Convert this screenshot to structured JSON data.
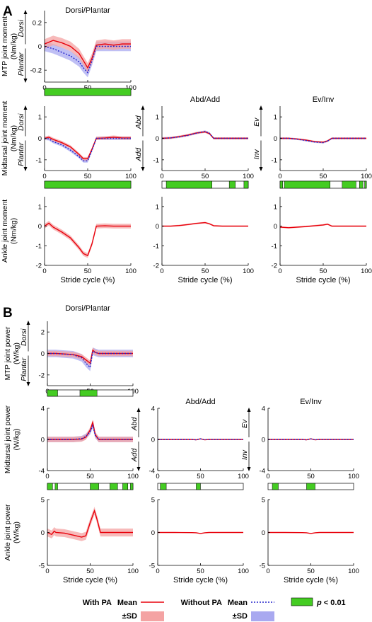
{
  "panel_letters": [
    "A",
    "B"
  ],
  "column_titles": [
    "Dorsi/Plantar",
    "Abd/Add",
    "Ev/Inv"
  ],
  "xlabel": "Stride cycle (%)",
  "direction_labels": {
    "dorsi_plantar": [
      "Dorsi",
      "Plantar"
    ],
    "abd_add": [
      "Abd",
      "Add"
    ],
    "ev_inv": [
      "Ev",
      "Inv"
    ]
  },
  "legend": {
    "with_pa": "With PA",
    "without_pa": "Without PA",
    "mean": "Mean",
    "sd": "±SD",
    "p_prefix": "p",
    "p_suffix": " < 0.01"
  },
  "colors": {
    "with_pa": "#e8000b",
    "with_pa_sd": "#f4a3a3",
    "without_pa": "#2222cc",
    "without_pa_sd": "#a9a9f0",
    "significant": "#44cc22"
  },
  "chart_data": [
    {
      "id": "A-mtp",
      "type": "line",
      "ylabel": [
        "MTP joint moment",
        "(Nm/kg)"
      ],
      "direction": "dorsi_plantar",
      "x": [
        0,
        10,
        20,
        30,
        40,
        45,
        50,
        55,
        60,
        70,
        80,
        90,
        100
      ],
      "series": [
        {
          "name": "With PA",
          "values": [
            0.02,
            0.05,
            0.03,
            0.0,
            -0.06,
            -0.12,
            -0.18,
            -0.1,
            0.01,
            0.02,
            0.01,
            0.02,
            0.02
          ],
          "sd": 0.04
        },
        {
          "name": "Without PA",
          "values": [
            0.0,
            -0.02,
            -0.05,
            -0.08,
            -0.13,
            -0.18,
            -0.22,
            -0.12,
            0.0,
            0.0,
            0.0,
            0.0,
            0.0
          ],
          "sd": 0.04
        }
      ],
      "ylim": [
        -0.3,
        0.3
      ],
      "yticks": [
        -0.2,
        0,
        0.2
      ],
      "xticks": [
        0,
        50,
        100
      ],
      "significance": [
        [
          0,
          100
        ]
      ]
    },
    {
      "id": "A-mid-dp",
      "type": "line",
      "ylabel": [
        "Midtarsal joint moment",
        "(Nm/kg)"
      ],
      "direction": "dorsi_plantar",
      "x": [
        0,
        5,
        10,
        20,
        30,
        40,
        45,
        50,
        55,
        60,
        70,
        80,
        90,
        100
      ],
      "series": [
        {
          "name": "With PA",
          "values": [
            0.0,
            0.05,
            -0.05,
            -0.2,
            -0.4,
            -0.75,
            -0.95,
            -0.95,
            -0.5,
            0.0,
            0.02,
            0.05,
            0.02,
            0.02
          ],
          "sd": 0.08
        },
        {
          "name": "Without PA",
          "values": [
            0.0,
            -0.02,
            -0.15,
            -0.3,
            -0.55,
            -0.85,
            -1.05,
            -1.05,
            -0.55,
            0.0,
            0.0,
            0.0,
            0.0,
            0.0
          ],
          "sd": 0.08
        }
      ],
      "ylim": [
        -1.5,
        1.5
      ],
      "yticks": [
        -1,
        0,
        1
      ],
      "xticks": [
        0,
        50,
        100
      ],
      "significance": [
        [
          0,
          100
        ]
      ]
    },
    {
      "id": "A-mid-aa",
      "type": "line",
      "title": "Abd/Add",
      "direction": "abd_add",
      "x": [
        0,
        10,
        20,
        30,
        40,
        50,
        55,
        60,
        70,
        80,
        90,
        100
      ],
      "series": [
        {
          "name": "With PA",
          "values": [
            0.0,
            0.02,
            0.08,
            0.15,
            0.25,
            0.3,
            0.22,
            0.0,
            0.0,
            0.0,
            0.0,
            0.0
          ],
          "sd": 0.05
        },
        {
          "name": "Without PA",
          "values": [
            0.0,
            0.02,
            0.07,
            0.14,
            0.24,
            0.32,
            0.24,
            0.0,
            0.0,
            0.0,
            0.0,
            0.0
          ],
          "sd": 0.05
        }
      ],
      "ylim": [
        -1.5,
        1.5
      ],
      "yticks": [
        -1,
        0,
        1
      ],
      "xticks": [
        0,
        50,
        100
      ],
      "significance": [
        [
          5,
          58
        ],
        [
          78,
          85
        ],
        [
          95,
          100
        ]
      ]
    },
    {
      "id": "A-mid-ei",
      "type": "line",
      "title": "Ev/Inv",
      "direction": "ev_inv",
      "x": [
        0,
        10,
        20,
        30,
        40,
        50,
        55,
        60,
        70,
        80,
        90,
        100
      ],
      "series": [
        {
          "name": "With PA",
          "values": [
            0.0,
            0.0,
            -0.03,
            -0.08,
            -0.15,
            -0.18,
            -0.12,
            0.0,
            0.0,
            0.0,
            0.0,
            0.0
          ],
          "sd": 0.04
        },
        {
          "name": "Without PA",
          "values": [
            0.0,
            0.0,
            -0.04,
            -0.1,
            -0.17,
            -0.2,
            -0.13,
            0.0,
            0.0,
            0.0,
            0.0,
            0.0
          ],
          "sd": 0.04
        }
      ],
      "ylim": [
        -1.5,
        1.5
      ],
      "yticks": [
        -1,
        0,
        1
      ],
      "xticks": [
        0,
        50,
        100
      ],
      "significance": [
        [
          0,
          3
        ],
        [
          5,
          58
        ],
        [
          72,
          88
        ],
        [
          92,
          96
        ],
        [
          98,
          100
        ]
      ]
    },
    {
      "id": "A-ankle",
      "type": "line",
      "ylabel": [
        "Ankle joint moment",
        "(Nm/kg)"
      ],
      "x": [
        0,
        5,
        10,
        20,
        30,
        40,
        45,
        50,
        55,
        60,
        70,
        80,
        90,
        100
      ],
      "series": [
        {
          "name": "With PA",
          "values": [
            0.0,
            0.15,
            -0.05,
            -0.3,
            -0.6,
            -1.1,
            -1.4,
            -1.5,
            -0.9,
            0.0,
            0.02,
            0.0,
            0.0,
            0.0
          ],
          "sd": 0.12
        }
      ],
      "ylim": [
        -2,
        1.5
      ],
      "yticks": [
        -2,
        -1,
        0,
        1
      ],
      "xticks": [
        0,
        50,
        100
      ],
      "xlabel": "Stride cycle (%)"
    },
    {
      "id": "A-ankle-aa",
      "type": "line",
      "x": [
        0,
        10,
        20,
        30,
        40,
        50,
        55,
        60,
        70,
        80,
        90,
        100
      ],
      "series": [
        {
          "name": "With PA",
          "values": [
            0.0,
            0.0,
            0.03,
            0.08,
            0.14,
            0.18,
            0.12,
            0.02,
            0.0,
            0.0,
            0.0,
            0.0
          ],
          "sd": 0.04
        }
      ],
      "ylim": [
        -2,
        1.5
      ],
      "yticks": [
        -2,
        -1,
        0,
        1
      ],
      "xticks": [
        0,
        50,
        100
      ],
      "xlabel": "Stride cycle (%)"
    },
    {
      "id": "A-ankle-ei",
      "type": "line",
      "x": [
        0,
        10,
        20,
        30,
        40,
        50,
        55,
        60,
        70,
        80,
        90,
        100
      ],
      "series": [
        {
          "name": "With PA",
          "values": [
            -0.05,
            -0.08,
            -0.05,
            -0.02,
            0.02,
            0.06,
            0.1,
            0.0,
            0.0,
            0.0,
            0.0,
            0.0
          ],
          "sd": 0.04
        }
      ],
      "ylim": [
        -2,
        1.5
      ],
      "yticks": [
        -2,
        -1,
        0,
        1
      ],
      "xticks": [
        0,
        50,
        100
      ],
      "xlabel": "Stride cycle (%)"
    },
    {
      "id": "B-mtp",
      "type": "line",
      "ylabel": [
        "MTP joint power",
        "(W/kg)"
      ],
      "direction": "dorsi_plantar",
      "x": [
        0,
        10,
        20,
        30,
        40,
        45,
        50,
        53,
        56,
        60,
        70,
        80,
        90,
        100
      ],
      "series": [
        {
          "name": "With PA",
          "values": [
            0.0,
            0.0,
            -0.05,
            -0.1,
            -0.3,
            -0.6,
            -0.9,
            0.3,
            0.1,
            0.0,
            0.0,
            0.0,
            0.0,
            0.0
          ],
          "sd": 0.25
        },
        {
          "name": "Without PA",
          "values": [
            0.0,
            0.0,
            -0.06,
            -0.12,
            -0.4,
            -0.9,
            -1.3,
            0.2,
            0.1,
            0.0,
            0.0,
            0.0,
            0.0,
            0.0
          ],
          "sd": 0.35
        }
      ],
      "ylim": [
        -3,
        3
      ],
      "yticks": [
        -2,
        0,
        2
      ],
      "xticks": [
        0,
        50,
        100
      ],
      "significance": [
        [
          0,
          12
        ],
        [
          38,
          58
        ]
      ]
    },
    {
      "id": "B-mid-dp",
      "type": "line",
      "ylabel": [
        "Midtarsal joint power",
        "(W/kg)"
      ],
      "x": [
        0,
        10,
        20,
        30,
        40,
        45,
        50,
        53,
        56,
        60,
        70,
        80,
        90,
        100
      ],
      "series": [
        {
          "name": "With PA",
          "values": [
            0.0,
            0.0,
            0.0,
            0.0,
            0.05,
            0.3,
            1.2,
            2.2,
            0.6,
            0.0,
            0.0,
            0.0,
            0.0,
            0.0
          ],
          "sd": 0.35
        },
        {
          "name": "Without PA",
          "values": [
            0.0,
            0.0,
            0.0,
            0.0,
            0.1,
            0.4,
            1.0,
            1.8,
            0.5,
            0.0,
            0.0,
            0.0,
            0.0,
            0.0
          ],
          "sd": 0.35
        }
      ],
      "ylim": [
        -4,
        4
      ],
      "yticks": [
        -4,
        0,
        4
      ],
      "xticks": [
        0,
        50,
        100
      ],
      "significance": [
        [
          0,
          6
        ],
        [
          9,
          12
        ],
        [
          50,
          60
        ],
        [
          73,
          82
        ],
        [
          88,
          94
        ],
        [
          97,
          100
        ]
      ]
    },
    {
      "id": "B-mid-aa",
      "type": "line",
      "title": "Abd/Add",
      "direction": "abd_add",
      "x": [
        0,
        20,
        40,
        45,
        50,
        55,
        60,
        80,
        100
      ],
      "series": [
        {
          "name": "With PA",
          "values": [
            0.0,
            0.0,
            0.0,
            -0.05,
            0.08,
            -0.05,
            0.0,
            0.0,
            0.0
          ],
          "sd": 0.05
        },
        {
          "name": "Without PA",
          "values": [
            0.0,
            0.0,
            0.0,
            -0.05,
            0.07,
            -0.04,
            0.0,
            0.0,
            0.0
          ],
          "sd": 0.05
        }
      ],
      "ylim": [
        -4,
        4
      ],
      "yticks": [
        -4,
        0,
        4
      ],
      "xticks": [
        0,
        50,
        100
      ],
      "significance": [
        [
          3,
          10
        ],
        [
          45,
          50
        ]
      ]
    },
    {
      "id": "B-mid-ei",
      "type": "line",
      "title": "Ev/Inv",
      "direction": "ev_inv",
      "x": [
        0,
        20,
        40,
        45,
        50,
        55,
        60,
        80,
        100
      ],
      "series": [
        {
          "name": "With PA",
          "values": [
            0.0,
            0.0,
            0.0,
            -0.05,
            0.08,
            -0.05,
            0.0,
            0.0,
            0.0
          ],
          "sd": 0.05
        },
        {
          "name": "Without PA",
          "values": [
            0.0,
            0.0,
            0.0,
            -0.05,
            0.07,
            -0.04,
            0.0,
            0.0,
            0.0
          ],
          "sd": 0.05
        }
      ],
      "ylim": [
        -4,
        4
      ],
      "yticks": [
        -4,
        0,
        4
      ],
      "xticks": [
        0,
        50,
        100
      ],
      "significance": [
        [
          5,
          12
        ],
        [
          45,
          55
        ]
      ]
    },
    {
      "id": "B-ankle",
      "type": "line",
      "ylabel": [
        "Ankle joint power",
        "(W/kg)"
      ],
      "x": [
        0,
        5,
        8,
        10,
        20,
        30,
        40,
        45,
        50,
        55,
        58,
        62,
        70,
        80,
        90,
        100
      ],
      "series": [
        {
          "name": "With PA",
          "values": [
            0.0,
            -0.3,
            0.2,
            0.0,
            -0.1,
            -0.4,
            -0.7,
            -0.5,
            1.5,
            3.3,
            2.0,
            0.0,
            0.0,
            0.0,
            0.0,
            0.0
          ],
          "sd": 0.6
        }
      ],
      "ylim": [
        -5,
        5
      ],
      "yticks": [
        -5,
        0,
        5
      ],
      "xticks": [
        0,
        50,
        100
      ],
      "xlabel": "Stride cycle (%)"
    },
    {
      "id": "B-ankle-aa",
      "type": "line",
      "x": [
        0,
        20,
        40,
        45,
        50,
        55,
        60,
        80,
        100
      ],
      "series": [
        {
          "name": "With PA",
          "values": [
            0.0,
            0.0,
            -0.02,
            -0.05,
            -0.15,
            -0.05,
            0.0,
            0.0,
            0.0
          ],
          "sd": 0.05
        }
      ],
      "ylim": [
        -5,
        5
      ],
      "yticks": [
        -5,
        0,
        5
      ],
      "xticks": [
        0,
        50,
        100
      ],
      "xlabel": "Stride cycle (%)"
    },
    {
      "id": "B-ankle-ei",
      "type": "line",
      "x": [
        0,
        20,
        40,
        45,
        50,
        55,
        60,
        80,
        100
      ],
      "series": [
        {
          "name": "With PA",
          "values": [
            0.0,
            0.0,
            -0.02,
            -0.05,
            -0.15,
            -0.05,
            0.0,
            0.0,
            0.0
          ],
          "sd": 0.05
        }
      ],
      "ylim": [
        -5,
        5
      ],
      "yticks": [
        -5,
        0,
        5
      ],
      "xticks": [
        0,
        50,
        100
      ],
      "xlabel": "Stride cycle (%)"
    }
  ]
}
